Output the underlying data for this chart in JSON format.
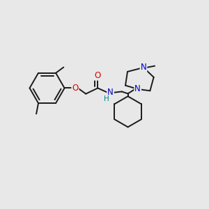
{
  "bg_color": "#e8e8e8",
  "bond_color": "#1a1a1a",
  "bond_width": 1.4,
  "atom_colors": {
    "O": "#dd0000",
    "N": "#0000cc",
    "H": "#008888",
    "C": "#1a1a1a"
  },
  "font_size": 8.5,
  "fig_size": [
    3.0,
    3.0
  ],
  "dpi": 100,
  "xlim": [
    0,
    10
  ],
  "ylim": [
    0,
    10
  ]
}
